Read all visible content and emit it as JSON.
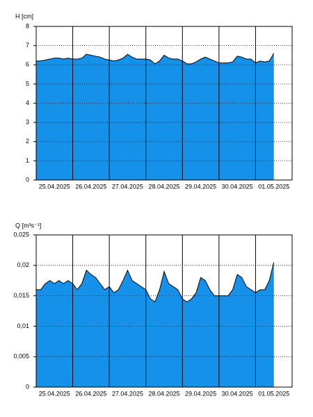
{
  "chart_data": [
    {
      "type": "area",
      "ylabel": "H [cm]",
      "color": "#1591ea",
      "grid": true,
      "xlim": [
        0,
        7
      ],
      "ylim": [
        0,
        8
      ],
      "yticks": [
        0,
        1,
        2,
        3,
        4,
        5,
        6,
        7,
        8
      ],
      "xticks": [
        {
          "value": 0.5,
          "label": "25.04.2025"
        },
        {
          "value": 1.5,
          "label": "26.04.2025"
        },
        {
          "value": 2.5,
          "label": "27.04.2025"
        },
        {
          "value": 3.5,
          "label": "28.04.2025"
        },
        {
          "value": 4.5,
          "label": "29.04.2025"
        },
        {
          "value": 5.5,
          "label": "30.04.2025"
        },
        {
          "value": 6.5,
          "label": "01.05.2025"
        }
      ],
      "day_lines": [
        1,
        2,
        3,
        4,
        5,
        6
      ],
      "x": [
        0,
        0.125,
        0.25,
        0.375,
        0.5,
        0.625,
        0.75,
        0.875,
        1,
        1.125,
        1.25,
        1.375,
        1.5,
        1.625,
        1.75,
        1.875,
        2,
        2.125,
        2.25,
        2.375,
        2.5,
        2.625,
        2.75,
        2.875,
        3,
        3.125,
        3.25,
        3.375,
        3.5,
        3.625,
        3.75,
        3.875,
        4,
        4.125,
        4.25,
        4.375,
        4.5,
        4.625,
        4.75,
        4.875,
        5,
        5.125,
        5.25,
        5.375,
        5.5,
        5.625,
        5.75,
        5.875,
        6,
        6.125,
        6.25,
        6.375,
        6.5
      ],
      "values": [
        6.2,
        6.2,
        6.25,
        6.3,
        6.35,
        6.35,
        6.3,
        6.35,
        6.3,
        6.3,
        6.35,
        6.55,
        6.5,
        6.45,
        6.4,
        6.3,
        6.25,
        6.2,
        6.25,
        6.35,
        6.55,
        6.4,
        6.3,
        6.3,
        6.3,
        6.25,
        6.05,
        6.2,
        6.5,
        6.35,
        6.3,
        6.3,
        6.2,
        6.05,
        6.05,
        6.15,
        6.3,
        6.4,
        6.3,
        6.2,
        6.1,
        6.1,
        6.1,
        6.15,
        6.45,
        6.4,
        6.3,
        6.3,
        6.1,
        6.2,
        6.15,
        6.2,
        6.6
      ]
    },
    {
      "type": "area",
      "ylabel": "Q [m³s⁻¹]",
      "color": "#1591ea",
      "grid": true,
      "xlim": [
        0,
        7
      ],
      "ylim": [
        0,
        0.025
      ],
      "yticks": [
        0,
        {
          "value": 0.005,
          "label": "0,005"
        },
        {
          "value": 0.01,
          "label": "0,01"
        },
        {
          "value": 0.015,
          "label": "0,015"
        },
        {
          "value": 0.02,
          "label": "0,02"
        },
        {
          "value": 0.025,
          "label": "0,025"
        }
      ],
      "xticks": [
        {
          "value": 0.5,
          "label": "25.04.2025"
        },
        {
          "value": 1.5,
          "label": "26.04.2025"
        },
        {
          "value": 2.5,
          "label": "27.04.2025"
        },
        {
          "value": 3.5,
          "label": "28.04.2025"
        },
        {
          "value": 4.5,
          "label": "29.04.2025"
        },
        {
          "value": 5.5,
          "label": "30.04.2025"
        },
        {
          "value": 6.5,
          "label": "01.05.2025"
        }
      ],
      "day_lines": [
        1,
        2,
        3,
        4,
        5,
        6
      ],
      "x": [
        0,
        0.125,
        0.25,
        0.375,
        0.5,
        0.625,
        0.75,
        0.875,
        1,
        1.125,
        1.25,
        1.375,
        1.5,
        1.625,
        1.75,
        1.875,
        2,
        2.125,
        2.25,
        2.375,
        2.5,
        2.625,
        2.75,
        2.875,
        3,
        3.125,
        3.25,
        3.375,
        3.5,
        3.625,
        3.75,
        3.875,
        4,
        4.125,
        4.25,
        4.375,
        4.5,
        4.625,
        4.75,
        4.875,
        5,
        5.125,
        5.25,
        5.375,
        5.5,
        5.625,
        5.75,
        5.875,
        6,
        6.125,
        6.25,
        6.375,
        6.5
      ],
      "values": [
        0.016,
        0.016,
        0.017,
        0.0175,
        0.017,
        0.0175,
        0.017,
        0.0175,
        0.017,
        0.016,
        0.017,
        0.0192,
        0.0185,
        0.018,
        0.017,
        0.016,
        0.0165,
        0.0155,
        0.016,
        0.0175,
        0.0192,
        0.0175,
        0.017,
        0.0165,
        0.016,
        0.0145,
        0.014,
        0.016,
        0.019,
        0.017,
        0.0165,
        0.016,
        0.0145,
        0.014,
        0.0145,
        0.0155,
        0.018,
        0.0175,
        0.016,
        0.015,
        0.015,
        0.015,
        0.015,
        0.016,
        0.0185,
        0.018,
        0.0165,
        0.016,
        0.0155,
        0.016,
        0.016,
        0.0175,
        0.0205
      ]
    }
  ]
}
